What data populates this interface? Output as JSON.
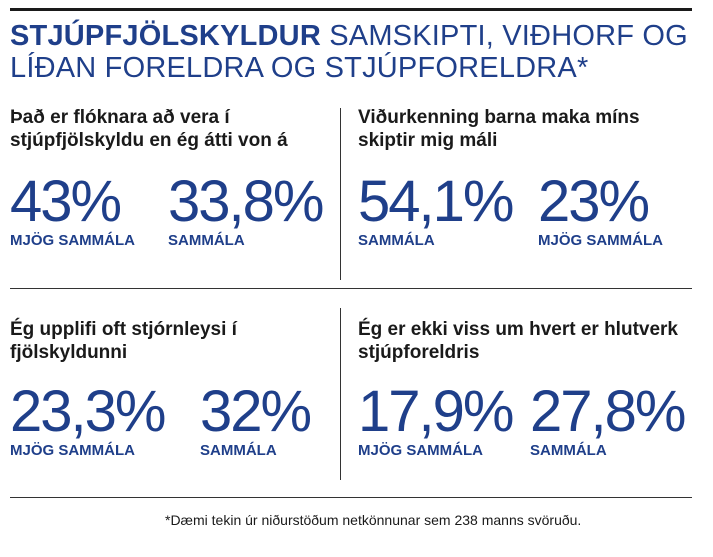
{
  "headline": {
    "bold": "Stjúpfjölskyldur",
    "rest": "samskipti, viðhorf og líðan foreldra og stjúpforeldra*"
  },
  "chart_data": {
    "type": "table",
    "panels": [
      {
        "question": "Það er flóknara að vera í stjúpfjölskyldu en ég átti von á",
        "stats": [
          {
            "value_text": "43%",
            "value": 43,
            "label": "MJÖG SAMMÁLA"
          },
          {
            "value_text": "33,8%",
            "value": 33.8,
            "label": "SAMMÁLA"
          }
        ]
      },
      {
        "question": "Viðurkenning barna maka míns skiptir mig máli",
        "stats": [
          {
            "value_text": "54,1%",
            "value": 54.1,
            "label": "SAMMÁLA"
          },
          {
            "value_text": "23%",
            "value": 23,
            "label": "MJÖG SAMMÁLA"
          }
        ]
      },
      {
        "question": "Ég upplifi oft stjórnleysi í fjölskyldunni",
        "stats": [
          {
            "value_text": "23,3%",
            "value": 23.3,
            "label": "MJÖG SAMMÁLA"
          },
          {
            "value_text": "32%",
            "value": 32,
            "label": "SAMMÁLA"
          }
        ]
      },
      {
        "question": "Ég er ekki viss um hvert er hlutverk stjúpforeldris",
        "stats": [
          {
            "value_text": "17,9%",
            "value": 17.9,
            "label": "MJÖG SAMMÁLA"
          },
          {
            "value_text": "27,8%",
            "value": 27.8,
            "label": "SAMMÁLA"
          }
        ]
      }
    ]
  },
  "footnote": "*Dæmi tekin úr niðurstöðum netkönnunar sem 238 manns svöruðu."
}
